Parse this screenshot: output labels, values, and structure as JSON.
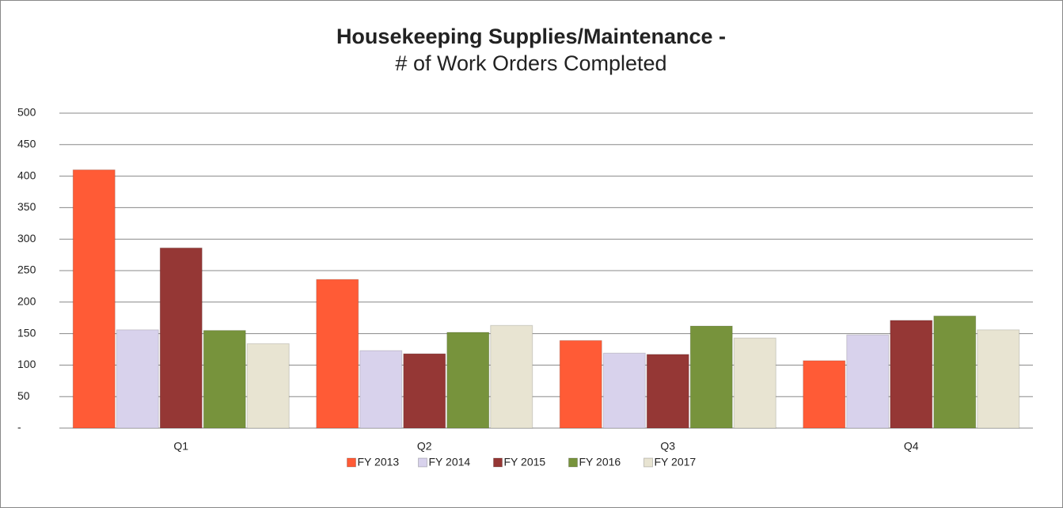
{
  "chart_data": {
    "type": "bar",
    "title": "Housekeeping Supplies/Maintenance -",
    "subtitle": "# of Work Orders Completed",
    "categories": [
      "Q1",
      "Q2",
      "Q3",
      "Q4"
    ],
    "series": [
      {
        "name": "FY 2013",
        "color": "#ff5b36",
        "values": [
          410,
          236,
          139,
          107
        ]
      },
      {
        "name": "FY 2014",
        "color": "#d8d2ec",
        "values": [
          156,
          123,
          119,
          148
        ]
      },
      {
        "name": "FY 2015",
        "color": "#953735",
        "values": [
          286,
          118,
          117,
          171
        ]
      },
      {
        "name": "FY 2016",
        "color": "#77933c",
        "values": [
          155,
          152,
          162,
          178
        ]
      },
      {
        "name": "FY 2017",
        "color": "#e8e4d2",
        "values": [
          134,
          163,
          143,
          156
        ]
      }
    ],
    "ylim": [
      0,
      500
    ],
    "yticks": [
      {
        "value": 0,
        "label": "-"
      },
      50,
      100,
      150,
      200,
      250,
      300,
      350,
      400,
      450,
      500
    ],
    "grid": true,
    "legend": "bottom"
  }
}
